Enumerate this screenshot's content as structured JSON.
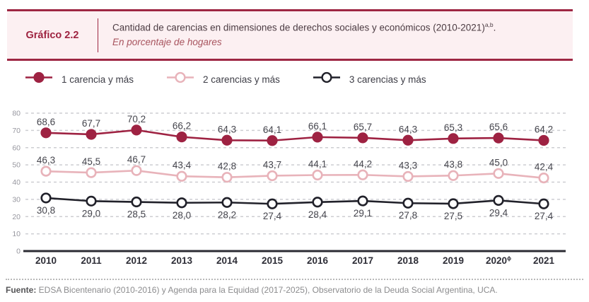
{
  "header": {
    "label": "Gráfico 2.2",
    "title": "Cantidad de carencias en dimensiones de derechos sociales y económicos (2010-2021)",
    "title_sup": "a,b",
    "title_suffix": ".",
    "subtitle": "En porcentaje de hogares"
  },
  "legend": {
    "items": [
      {
        "label": "1 carencia y más"
      },
      {
        "label": "2 carencias y más"
      },
      {
        "label": "3 carencias y más"
      }
    ]
  },
  "chart_data": {
    "type": "line",
    "title": "Cantidad de carencias en dimensiones de derechos sociales y económicos (2010-2021)",
    "subtitle": "En porcentaje de hogares",
    "categories": [
      "2010",
      "2011",
      "2012",
      "2013",
      "2014",
      "2015",
      "2016",
      "2017",
      "2018",
      "2019",
      "2020",
      "2021"
    ],
    "category_sup": {
      "index": 10,
      "mark": "ϕ"
    },
    "series": [
      {
        "name": "1 carencia y más",
        "color": "#9e2242",
        "marker": "filled",
        "values": [
          68.6,
          67.7,
          70.2,
          66.2,
          64.3,
          64.1,
          66.1,
          65.7,
          64.3,
          65.3,
          65.6,
          64.2
        ],
        "label_position": "above"
      },
      {
        "name": "2 carencias y más",
        "color": "#e8b3ba",
        "marker": "open",
        "values": [
          46.3,
          45.5,
          46.7,
          43.4,
          42.8,
          43.7,
          44.1,
          44.2,
          43.3,
          43.8,
          45.0,
          42.4
        ],
        "label_position": "above"
      },
      {
        "name": "3 carencias y más",
        "color": "#21212a",
        "marker": "open",
        "values": [
          30.8,
          29.0,
          28.5,
          28.0,
          28.2,
          27.4,
          28.4,
          29.1,
          27.8,
          27.5,
          29.4,
          27.4
        ],
        "label_position": "below"
      }
    ],
    "ylim": [
      0,
      80
    ],
    "yticks": [
      0,
      10,
      20,
      30,
      40,
      50,
      60,
      70,
      80
    ],
    "xlabel": "",
    "ylabel": "",
    "grid": "horizontal-dashed",
    "legend_position": "top",
    "decimal_separator": ","
  },
  "style": {
    "grid_color": "#cdced2",
    "axis_color": "#2b2b33",
    "ytick_color": "#97979f",
    "xtick_color": "#2e2e37",
    "datalabel_color": "#45454d",
    "accent": "#9e2743",
    "header_bg": "#fcf0f2"
  },
  "footer": {
    "source_label": "Fuente:",
    "source_text": " EDSA Bicentenario (2010-2016) y Agenda para la Equidad (2017-2025), Observatorio de la Deuda Social Argentina, UCA."
  }
}
